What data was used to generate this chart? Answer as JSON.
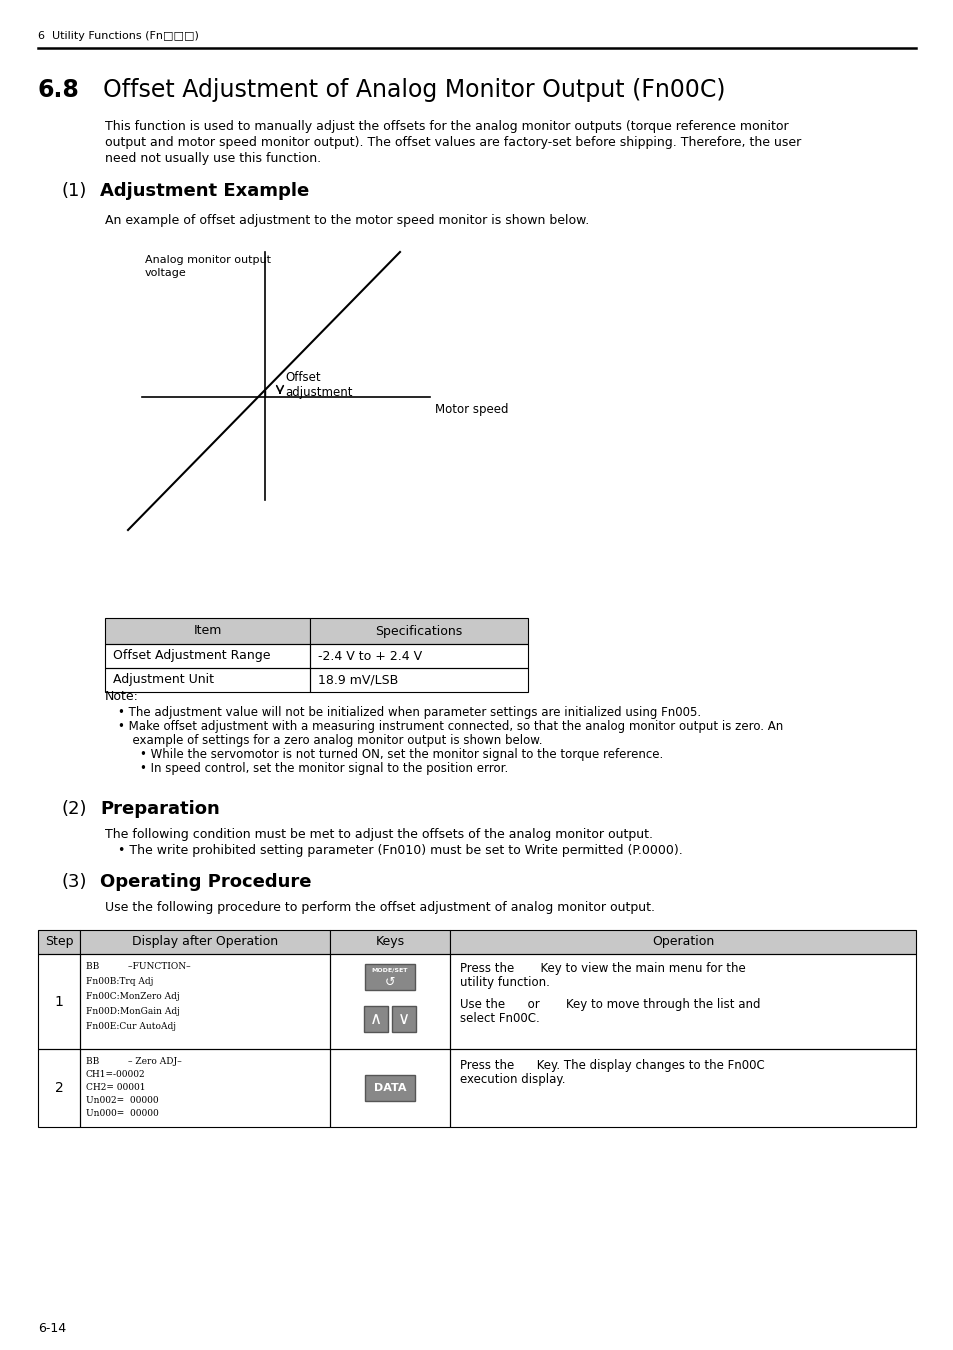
{
  "header_text": "6  Utility Functions (Fn□□□)",
  "section_number": "6.8",
  "section_title": "Offset Adjustment of Analog Monitor Output (Fn00C)",
  "intro_lines": [
    "This function is used to manually adjust the offsets for the analog monitor outputs (torque reference monitor",
    "output and motor speed monitor output). The offset values are factory-set before shipping. Therefore, the user",
    "need not usually use this function."
  ],
  "sub1_num": "(1)",
  "sub1_title": "Adjustment Example",
  "adj_text": "An example of offset adjustment to the motor speed monitor is shown below.",
  "graph_ylabel": "Analog monitor output\nvoltage",
  "graph_xlabel": "Motor speed",
  "graph_offset_label": "Offset\nadjustment",
  "table1_headers": [
    "Item",
    "Specifications"
  ],
  "table1_rows": [
    [
      "Offset Adjustment Range",
      "-2.4 V to + 2.4 V"
    ],
    [
      "Adjustment Unit",
      "18.9 mV/LSB"
    ]
  ],
  "note_title": "Note:",
  "note_lines": [
    "• The adjustment value will not be initialized when parameter settings are initialized using Fn005.",
    "• Make offset adjustment with a measuring instrument connected, so that the analog monitor output is zero. An",
    "  example of settings for a zero analog monitor output is shown below.",
    "    • While the servomotor is not turned ON, set the monitor signal to the torque reference.",
    "    • In speed control, set the monitor signal to the position error."
  ],
  "sub2_num": "(2)",
  "sub2_title": "Preparation",
  "prep_lines": [
    "The following condition must be met to adjust the offsets of the analog monitor output.",
    "• The write prohibited setting parameter (Fn010) must be set to Write permitted (P.0000)."
  ],
  "sub3_num": "(3)",
  "sub3_title": "Operating Procedure",
  "proc_text": "Use the following procedure to perform the offset adjustment of analog monitor output.",
  "table2_headers": [
    "Step",
    "Display after Operation",
    "Keys",
    "Operation"
  ],
  "step1_num": "1",
  "step1_display": [
    "BB          –FUNCTION–",
    "Fn00B:Trq Adj",
    "Fn00C:MonZero Adj",
    "Fn00D:MonGain Adj",
    "Fn00E:Cur AutoAdj"
  ],
  "step1_op1": "Press the       Key to view the main menu for the",
  "step1_op2": "utility function.",
  "step1_op3": "Use the      or       Key to move through the list and",
  "step1_op4": "select Fn00C.",
  "step2_num": "2",
  "step2_display": [
    "BB          – Zero ADJ–",
    "CH1=-00002",
    "CH2= 00001",
    "Un002=  00000",
    "Un000=  00000"
  ],
  "step2_op1": "Press the      Key. The display changes to the Fn00C",
  "step2_op2": "execution display.",
  "page_number": "6-14",
  "table_header_bg": "#c8c8c8",
  "table_display_bg": "#ffffff"
}
